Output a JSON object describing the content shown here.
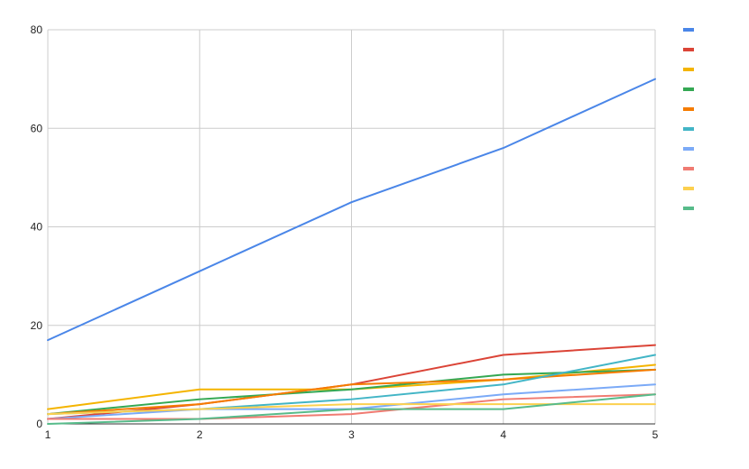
{
  "chart_data": {
    "type": "line",
    "title": "",
    "xlabel": "",
    "ylabel": "",
    "x": [
      1,
      2,
      3,
      4,
      5
    ],
    "xlim": [
      1,
      5
    ],
    "ylim": [
      0,
      80
    ],
    "yticks": [
      0,
      20,
      40,
      60,
      80
    ],
    "xticks": [
      1,
      2,
      3,
      4,
      5
    ],
    "grid": true,
    "legend_position": "right",
    "series": [
      {
        "color": "#4a86e8",
        "values": [
          17,
          31,
          45,
          56,
          70
        ]
      },
      {
        "color": "#db4437",
        "values": [
          1,
          4,
          8,
          14,
          16
        ]
      },
      {
        "color": "#f4b400",
        "values": [
          3,
          7,
          7,
          9,
          12
        ]
      },
      {
        "color": "#34a853",
        "values": [
          2,
          5,
          7,
          10,
          11
        ]
      },
      {
        "color": "#f57c00",
        "values": [
          2,
          4,
          8,
          9,
          11
        ]
      },
      {
        "color": "#42b5c6",
        "values": [
          2,
          3,
          5,
          8,
          14
        ]
      },
      {
        "color": "#7baaf7",
        "values": [
          1,
          3,
          3,
          6,
          8
        ]
      },
      {
        "color": "#f07b72",
        "values": [
          1,
          1,
          2,
          5,
          6
        ]
      },
      {
        "color": "#fcd04f",
        "values": [
          2,
          3,
          4,
          4,
          4
        ]
      },
      {
        "color": "#57bb8a",
        "values": [
          0,
          1,
          3,
          3,
          6
        ]
      }
    ]
  }
}
